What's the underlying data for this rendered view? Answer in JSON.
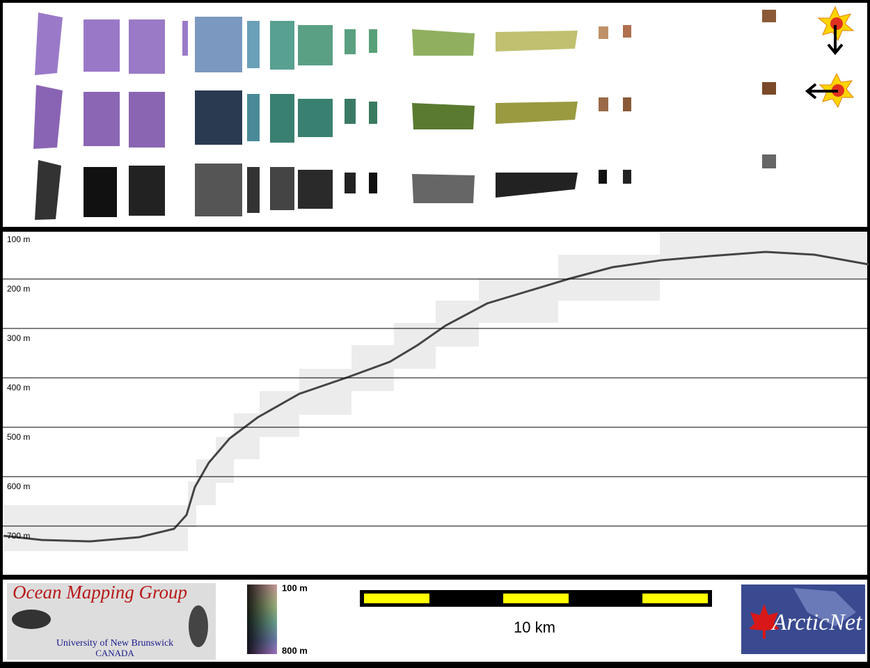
{
  "depth_profile": {
    "depth_labels": [
      "100 m",
      "200 m",
      "300 m",
      "400 m",
      "500 m",
      "600 m",
      "700 m"
    ]
  },
  "footer": {
    "logo": {
      "title": "Ocean Mapping Group",
      "institution": "University of New Brunswick",
      "country": "CANADA"
    },
    "colorbar": {
      "top_label": "100 m",
      "bottom_label": "800 m"
    },
    "scale_bar": {
      "label": "10 km"
    },
    "partner_logo": {
      "text": "ArcticNet"
    }
  }
}
